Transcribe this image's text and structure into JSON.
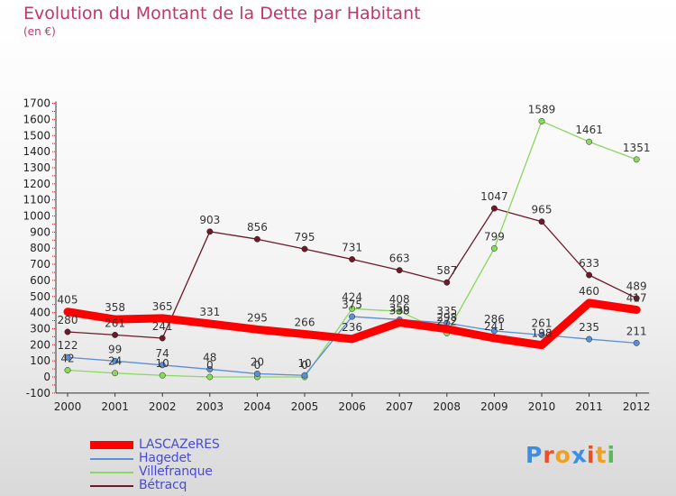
{
  "title": "Evolution du Montant de la Dette par Habitant",
  "subtitle": "(en €)",
  "chart_data": {
    "type": "line",
    "x": [
      "2000",
      "2001",
      "2002",
      "2003",
      "2004",
      "2005",
      "2006",
      "2007",
      "2008",
      "2009",
      "2010",
      "2011",
      "2012"
    ],
    "ylim": [
      -100,
      1700
    ],
    "yticks": [
      "-100",
      "0",
      "100",
      "200",
      "300",
      "400",
      "500",
      "600",
      "700",
      "800",
      "900",
      "1000",
      "1100",
      "1200",
      "1300",
      "1400",
      "1500",
      "1600",
      "1700"
    ],
    "grid": false,
    "legend_position": "bottom-left",
    "series": [
      {
        "name": "LASCAZeRES",
        "color": "#ff0000",
        "values": [
          405,
          358,
          365,
          331,
          295,
          266,
          236,
          338,
          298,
          241,
          198,
          460,
          417
        ],
        "labels": [
          "405",
          "358",
          "365",
          "331",
          "295",
          "266",
          "236",
          "338",
          "298",
          "241",
          "198",
          "460",
          "417"
        ]
      },
      {
        "name": "Hagedet",
        "color": "#5b8fd6",
        "values": [
          122,
          99,
          74,
          48,
          20,
          10,
          375,
          356,
          335,
          286,
          261,
          235,
          211
        ],
        "labels": [
          "122",
          "99",
          "74",
          "48",
          "20",
          "10",
          "375",
          "356",
          "335",
          "286",
          "261",
          "235",
          "211"
        ]
      },
      {
        "name": "Villefranque",
        "color": "#8ad85f",
        "values": [
          42,
          24,
          10,
          0,
          0,
          0,
          424,
          408,
          272,
          799,
          1589,
          1461,
          1351
        ],
        "labels": [
          "42",
          "24",
          "10",
          "0",
          "0",
          "0",
          "424",
          "408",
          "272",
          "799",
          "1589",
          "1461",
          "1351"
        ]
      },
      {
        "name": "Bétracq",
        "color": "#6b1a2a",
        "values": [
          280,
          261,
          241,
          903,
          856,
          795,
          731,
          663,
          587,
          1047,
          965,
          633,
          489
        ],
        "labels": [
          "280",
          "261",
          "241",
          "903",
          "856",
          "795",
          "731",
          "663",
          "587",
          "1047",
          "965",
          "633",
          "489"
        ]
      }
    ]
  },
  "logo": {
    "letters": [
      "P",
      "r",
      "o",
      "x",
      "i",
      "t",
      "i"
    ],
    "colors": [
      "#3a8ee6",
      "#e8502a",
      "#f0a020",
      "#3a8ee6",
      "#e8502a",
      "#f0a020",
      "#5bb85b"
    ]
  }
}
